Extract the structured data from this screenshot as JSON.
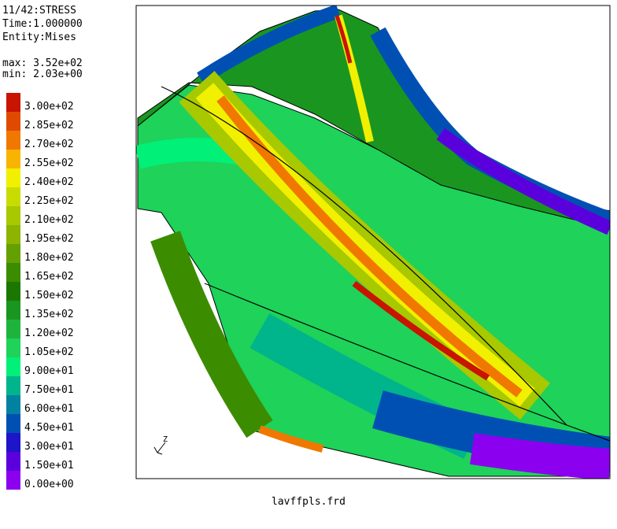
{
  "header": {
    "lines": [
      "11/42:STRESS",
      "Time:1.000000",
      "Entity:Mises"
    ],
    "max": "max: 3.52e+02",
    "min": "min: 2.03e+00"
  },
  "legend": {
    "entries": [
      {
        "label": "3.00e+02",
        "color": "#c81400"
      },
      {
        "label": "2.85e+02",
        "color": "#e04a00"
      },
      {
        "label": "2.70e+02",
        "color": "#f07800"
      },
      {
        "label": "2.55e+02",
        "color": "#f8b400"
      },
      {
        "label": "2.40e+02",
        "color": "#f0f000"
      },
      {
        "label": "2.25e+02",
        "color": "#c8dc00"
      },
      {
        "label": "2.10e+02",
        "color": "#a8c800"
      },
      {
        "label": "1.95e+02",
        "color": "#8cb400"
      },
      {
        "label": "1.80e+02",
        "color": "#64a000"
      },
      {
        "label": "1.65e+02",
        "color": "#3c8c00"
      },
      {
        "label": "1.50e+02",
        "color": "#1a7800"
      },
      {
        "label": "1.35e+02",
        "color": "#1a9620"
      },
      {
        "label": "1.20e+02",
        "color": "#1eb43c"
      },
      {
        "label": "1.05e+02",
        "color": "#1ed25a"
      },
      {
        "label": "9.00e+01",
        "color": "#00f078"
      },
      {
        "label": "7.50e+01",
        "color": "#00b48c"
      },
      {
        "label": "6.00e+01",
        "color": "#0082a0"
      },
      {
        "label": "4.50e+01",
        "color": "#0050b4"
      },
      {
        "label": "3.00e+01",
        "color": "#1e14c8"
      },
      {
        "label": "1.50e+01",
        "color": "#5a00dc"
      },
      {
        "label": "0.00e+00",
        "color": "#8c00f0"
      }
    ]
  },
  "footer": {
    "file": "lavffpls.frd"
  },
  "axes_triad": {
    "label": "Z"
  }
}
